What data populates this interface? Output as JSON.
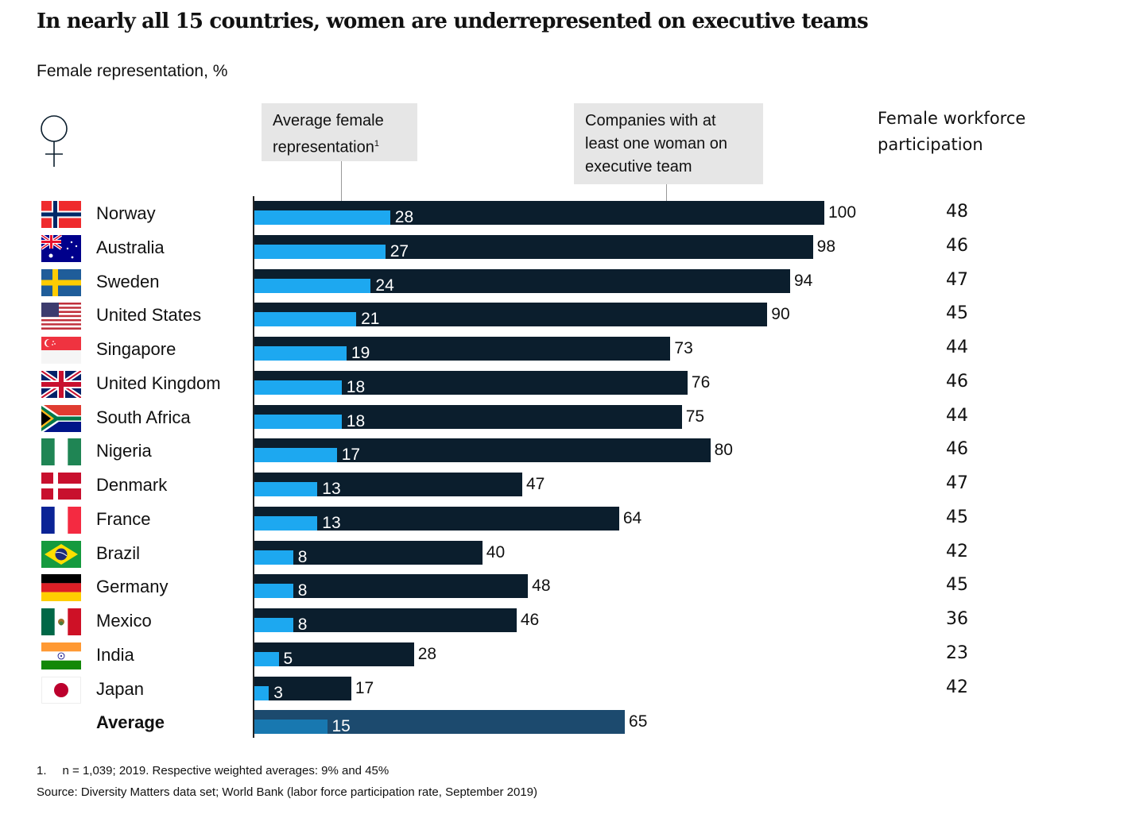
{
  "header": {
    "title": "In nearly all 15 countries, women are underrepresented on executive teams",
    "subtitle": "Female representation, %"
  },
  "callouts": {
    "avg_female_line1": "Average female",
    "avg_female_line2": "representation",
    "avg_female_sup": "1",
    "companies_line1": "Companies with at",
    "companies_line2": "least one woman on",
    "companies_line3": "executive team"
  },
  "workforce_header": {
    "line1": "Female workforce",
    "line2": "participation"
  },
  "colors": {
    "dark_bar": "#0b1e2d",
    "blue_bar": "#1da8f0",
    "avg_dark_bar": "#1c4a6e",
    "avg_blue_bar": "#1878b0"
  },
  "chart_data": {
    "type": "bar",
    "orientation": "horizontal",
    "title": "In nearly all 15 countries, women are underrepresented on executive teams",
    "subtitle": "Female representation, %",
    "categories": [
      "Norway",
      "Australia",
      "Sweden",
      "United States",
      "Singapore",
      "United Kingdom",
      "South Africa",
      "Nigeria",
      "Denmark",
      "France",
      "Brazil",
      "Germany",
      "Mexico",
      "India",
      "Japan",
      "Average"
    ],
    "flags": [
      "norway-flag",
      "australia-flag",
      "sweden-flag",
      "united-states-flag",
      "singapore-flag",
      "united-kingdom-flag",
      "south-africa-flag",
      "nigeria-flag",
      "denmark-flag",
      "france-flag",
      "brazil-flag",
      "germany-flag",
      "mexico-flag",
      "india-flag",
      "japan-flag",
      ""
    ],
    "series": [
      {
        "name": "Average female representation",
        "values": [
          28,
          27,
          24,
          21,
          19,
          18,
          18,
          17,
          13,
          13,
          8,
          8,
          8,
          5,
          3,
          15
        ]
      },
      {
        "name": "Companies with at least one woman on executive team",
        "values": [
          100,
          98,
          94,
          90,
          73,
          76,
          75,
          80,
          47,
          64,
          40,
          48,
          46,
          28,
          17,
          65
        ]
      }
    ],
    "female_workforce_participation": [
      48,
      46,
      47,
      45,
      44,
      46,
      44,
      46,
      47,
      45,
      42,
      45,
      36,
      23,
      42
    ],
    "xlim": [
      0,
      100
    ],
    "grid": false,
    "legend": "callout boxes top"
  },
  "footnotes": {
    "note1_num": "1.",
    "note1_text": "n = 1,039; 2019. Respective weighted averages: 9% and 45%",
    "source": "Source: Diversity Matters data set; World Bank (labor force participation rate, September 2019)"
  }
}
